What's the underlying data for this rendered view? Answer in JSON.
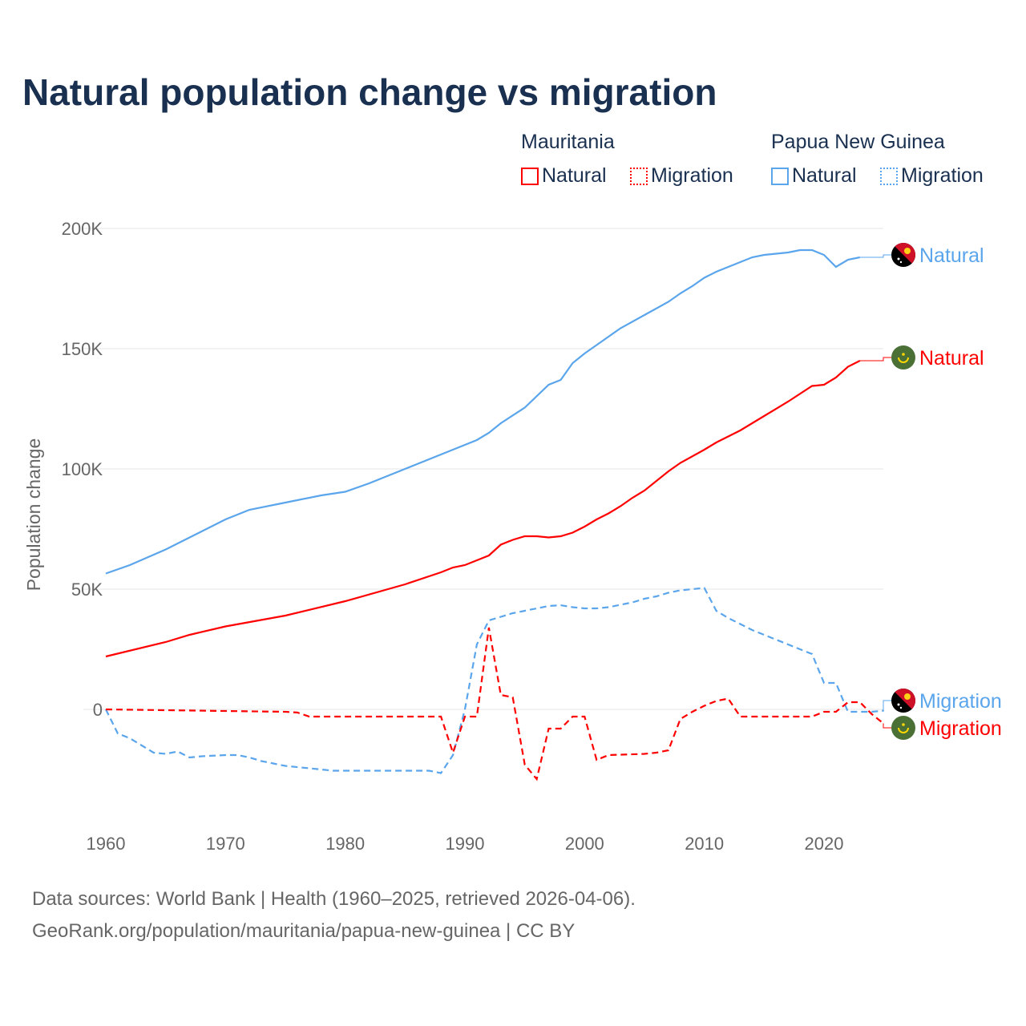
{
  "title": "Natural population change vs migration",
  "legend": {
    "groups": [
      {
        "name": "Mauritania",
        "color": "#ff0000",
        "items": [
          "Natural",
          "Migration"
        ]
      },
      {
        "name": "Papua New Guinea",
        "color": "#5aa5ec",
        "items": [
          "Natural",
          "Migration"
        ]
      }
    ]
  },
  "footer": [
    "Data sources: World Bank | Health (1960–2025, retrieved 2026-04-06).",
    "GeoRank.org/population/mauritania/papua-new-guinea | CC BY"
  ],
  "chart_data": {
    "type": "line",
    "title": "Natural population change vs migration",
    "ylabel": "Population change",
    "xlim": [
      1960,
      2025
    ],
    "ylim": [
      -40000,
      200000
    ],
    "xticks": [
      "1960",
      "1970",
      "1980",
      "1990",
      "2000",
      "2010",
      "2020"
    ],
    "yticks": [
      {
        "v": 0,
        "l": "0"
      },
      {
        "v": 50000,
        "l": "50K"
      },
      {
        "v": 100000,
        "l": "100K"
      },
      {
        "v": 150000,
        "l": "150K"
      },
      {
        "v": 200000,
        "l": "200K"
      }
    ],
    "series": [
      {
        "name": "Papua New Guinea Natural",
        "label": "Natural",
        "color": "#5aa5ec",
        "dash": false,
        "flag": "png",
        "points": [
          [
            1960,
            56500
          ],
          [
            1962,
            60000
          ],
          [
            1965,
            66500
          ],
          [
            1970,
            79000
          ],
          [
            1972,
            83000
          ],
          [
            1975,
            86000
          ],
          [
            1978,
            89000
          ],
          [
            1980,
            90500
          ],
          [
            1982,
            94000
          ],
          [
            1985,
            100000
          ],
          [
            1990,
            110000
          ],
          [
            1991,
            112000
          ],
          [
            1992,
            115000
          ],
          [
            1993,
            119000
          ],
          [
            1995,
            125500
          ],
          [
            1997,
            135000
          ],
          [
            1998,
            137000
          ],
          [
            1999,
            144000
          ],
          [
            2000,
            148000
          ],
          [
            2003,
            158500
          ],
          [
            2005,
            164000
          ],
          [
            2007,
            169500
          ],
          [
            2008,
            173000
          ],
          [
            2009,
            176000
          ],
          [
            2010,
            179500
          ],
          [
            2011,
            182000
          ],
          [
            2013,
            186000
          ],
          [
            2014,
            188000
          ],
          [
            2015,
            189000
          ],
          [
            2017,
            190000
          ],
          [
            2018,
            191000
          ],
          [
            2019,
            191000
          ],
          [
            2020,
            189000
          ],
          [
            2021,
            184000
          ],
          [
            2022,
            187000
          ],
          [
            2023,
            188000
          ]
        ]
      },
      {
        "name": "Mauritania Natural",
        "label": "Natural",
        "color": "#ff0000",
        "dash": false,
        "flag": "mrt",
        "points": [
          [
            1960,
            22000
          ],
          [
            1965,
            28000
          ],
          [
            1967,
            31000
          ],
          [
            1970,
            34500
          ],
          [
            1975,
            39000
          ],
          [
            1980,
            45000
          ],
          [
            1985,
            52000
          ],
          [
            1988,
            57000
          ],
          [
            1989,
            59000
          ],
          [
            1990,
            60000
          ],
          [
            1992,
            64000
          ],
          [
            1993,
            68500
          ],
          [
            1994,
            70500
          ],
          [
            1995,
            72000
          ],
          [
            1996,
            72000
          ],
          [
            1997,
            71500
          ],
          [
            1998,
            72000
          ],
          [
            1999,
            73500
          ],
          [
            2000,
            76000
          ],
          [
            2001,
            79000
          ],
          [
            2002,
            81500
          ],
          [
            2003,
            84500
          ],
          [
            2004,
            88000
          ],
          [
            2005,
            91000
          ],
          [
            2007,
            99000
          ],
          [
            2008,
            102500
          ],
          [
            2010,
            108000
          ],
          [
            2011,
            111000
          ],
          [
            2013,
            116000
          ],
          [
            2015,
            122000
          ],
          [
            2017,
            128000
          ],
          [
            2019,
            134500
          ],
          [
            2020,
            135000
          ],
          [
            2021,
            138000
          ],
          [
            2022,
            142500
          ],
          [
            2023,
            145000
          ]
        ]
      },
      {
        "name": "Papua New Guinea Migration",
        "label": "Migration",
        "color": "#5aa5ec",
        "dash": true,
        "flag": "png",
        "points": [
          [
            1960,
            0
          ],
          [
            1961,
            -10000
          ],
          [
            1962,
            -12000
          ],
          [
            1963,
            -15000
          ],
          [
            1964,
            -18000
          ],
          [
            1965,
            -18500
          ],
          [
            1966,
            -17500
          ],
          [
            1967,
            -20000
          ],
          [
            1968,
            -19500
          ],
          [
            1970,
            -19000
          ],
          [
            1971,
            -19000
          ],
          [
            1972,
            -20000
          ],
          [
            1973,
            -21500
          ],
          [
            1974,
            -22500
          ],
          [
            1975,
            -23500
          ],
          [
            1977,
            -24500
          ],
          [
            1979,
            -25500
          ],
          [
            1987,
            -25500
          ],
          [
            1988,
            -26500
          ],
          [
            1989,
            -19000
          ],
          [
            1990,
            0
          ],
          [
            1991,
            27000
          ],
          [
            1992,
            37000
          ],
          [
            1993,
            38500
          ],
          [
            1994,
            40000
          ],
          [
            1995,
            41000
          ],
          [
            1996,
            42000
          ],
          [
            1997,
            43000
          ],
          [
            1998,
            43300
          ],
          [
            1999,
            42500
          ],
          [
            2000,
            42000
          ],
          [
            2001,
            42000
          ],
          [
            2002,
            42500
          ],
          [
            2003,
            43500
          ],
          [
            2004,
            44500
          ],
          [
            2005,
            46000
          ],
          [
            2006,
            47000
          ],
          [
            2007,
            48500
          ],
          [
            2008,
            49500
          ],
          [
            2009,
            50000
          ],
          [
            2010,
            50500
          ],
          [
            2011,
            41000
          ],
          [
            2012,
            38000
          ],
          [
            2013,
            35500
          ],
          [
            2014,
            33000
          ],
          [
            2015,
            31000
          ],
          [
            2016,
            29000
          ],
          [
            2017,
            27000
          ],
          [
            2018,
            25000
          ],
          [
            2019,
            23000
          ],
          [
            2020,
            11000
          ],
          [
            2021,
            11000
          ],
          [
            2022,
            -1000
          ],
          [
            2023,
            -1000
          ],
          [
            2024,
            -1000
          ],
          [
            2025,
            -500
          ]
        ]
      },
      {
        "name": "Mauritania Migration",
        "label": "Migration",
        "color": "#ff0000",
        "dash": true,
        "flag": "mrt",
        "points": [
          [
            1960,
            0
          ],
          [
            1975,
            -1000
          ],
          [
            1976,
            -1300
          ],
          [
            1977,
            -3000
          ],
          [
            1988,
            -3000
          ],
          [
            1989,
            -18000
          ],
          [
            1990,
            -3000
          ],
          [
            1991,
            -3000
          ],
          [
            1992,
            34000
          ],
          [
            1993,
            6000
          ],
          [
            1994,
            5000
          ],
          [
            1995,
            -23000
          ],
          [
            1996,
            -29000
          ],
          [
            1997,
            -8000
          ],
          [
            1998,
            -8000
          ],
          [
            1999,
            -3000
          ],
          [
            2000,
            -3000
          ],
          [
            2001,
            -21000
          ],
          [
            2002,
            -19000
          ],
          [
            2005,
            -18500
          ],
          [
            2006,
            -18000
          ],
          [
            2007,
            -17000
          ],
          [
            2008,
            -4000
          ],
          [
            2009,
            -1000
          ],
          [
            2010,
            1500
          ],
          [
            2011,
            3500
          ],
          [
            2012,
            4500
          ],
          [
            2013,
            -3000
          ],
          [
            2019,
            -3000
          ],
          [
            2020,
            -1000
          ],
          [
            2021,
            -1000
          ],
          [
            2022,
            3000
          ],
          [
            2023,
            3000
          ],
          [
            2024,
            -2000
          ],
          [
            2025,
            -6000
          ]
        ]
      }
    ]
  }
}
